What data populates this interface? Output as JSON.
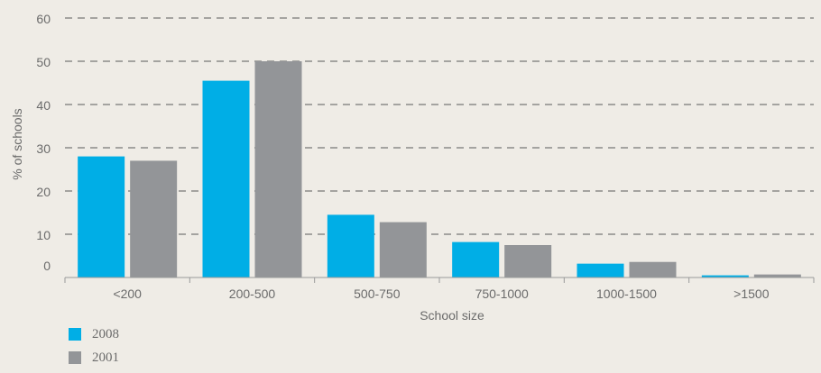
{
  "colors": {
    "series_2008": "#00aee6",
    "series_2001": "#939598",
    "grid": "#5a5a5a",
    "axis": "#9a9a9a",
    "text": "#6b6b6b",
    "background": "#efece6"
  },
  "chart_data": {
    "type": "bar",
    "title": "",
    "xlabel": "School size",
    "ylabel": "% of schools",
    "ylim": [
      0,
      60
    ],
    "yticks": [
      "0",
      "10",
      "20",
      "30",
      "40",
      "50",
      "60"
    ],
    "grid": "dashed horizontal",
    "legend_placement": "bottom-left",
    "categories": [
      "<200",
      "200-500",
      "500-750",
      "750-1000",
      "1000-1500",
      ">1500"
    ],
    "series": [
      {
        "name": "2008",
        "color": "#00aee6",
        "values": [
          28,
          45.5,
          14.5,
          8.2,
          3.2,
          0.5
        ]
      },
      {
        "name": "2001",
        "color": "#939598",
        "values": [
          27,
          50,
          12.8,
          7.5,
          3.6,
          0.7
        ]
      }
    ]
  }
}
